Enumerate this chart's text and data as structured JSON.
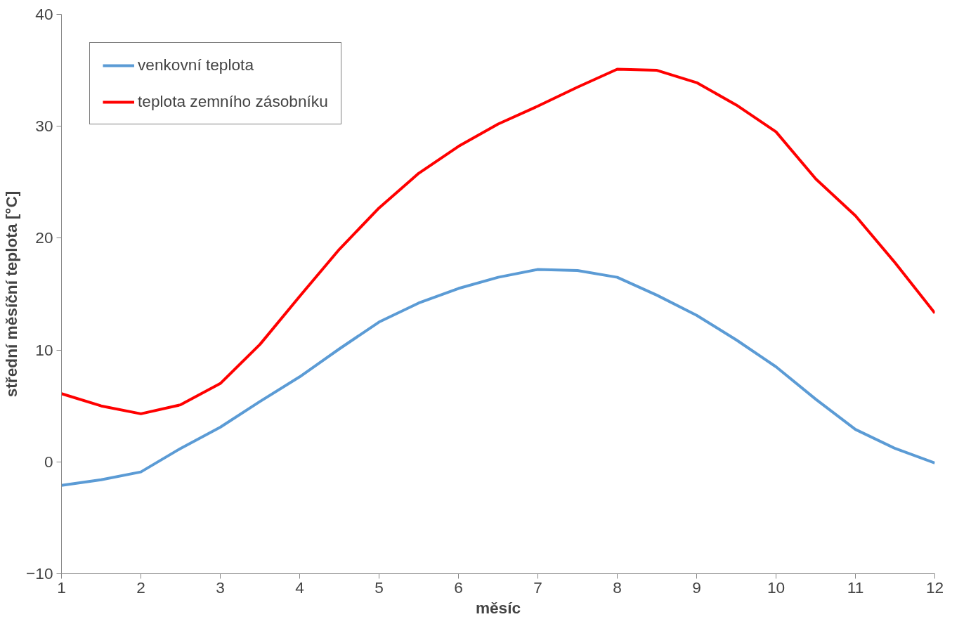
{
  "chart_data": {
    "type": "line",
    "xlabel": "měsíc",
    "ylabel": "střední měsíční teplota [°C]",
    "x": [
      1,
      1.5,
      2,
      2.5,
      3,
      3.5,
      4,
      4.5,
      5,
      5.5,
      6,
      6.5,
      7,
      7.5,
      8,
      8.5,
      9,
      9.5,
      10,
      10.5,
      11,
      11.5,
      12
    ],
    "series": [
      {
        "name": "venkovní teplota",
        "color": "#5b9bd5",
        "values": [
          -2.1,
          -1.6,
          -0.9,
          1.2,
          3.1,
          5.4,
          7.6,
          10.1,
          12.5,
          14.2,
          15.5,
          16.5,
          17.2,
          17.1,
          16.5,
          14.9,
          13.1,
          10.9,
          8.5,
          5.6,
          2.9,
          1.2,
          -0.1
        ]
      },
      {
        "name": "teplota zemního zásobníku",
        "color": "#ff0000",
        "values": [
          6.1,
          5.0,
          4.3,
          5.1,
          7.0,
          10.5,
          14.8,
          19.0,
          22.7,
          25.8,
          28.2,
          30.2,
          31.8,
          33.5,
          35.1,
          35.0,
          33.9,
          31.9,
          29.5,
          25.3,
          22.0,
          17.8,
          13.3
        ]
      }
    ],
    "xlim": [
      1,
      12
    ],
    "xticks": [
      1,
      2,
      3,
      4,
      5,
      6,
      7,
      8,
      9,
      10,
      11,
      12
    ],
    "ylim": [
      -10,
      40
    ],
    "yticks": [
      -10,
      0,
      10,
      20,
      30,
      40
    ],
    "grid": false,
    "legend": "top left",
    "marker": "none",
    "line_style": "solid"
  }
}
